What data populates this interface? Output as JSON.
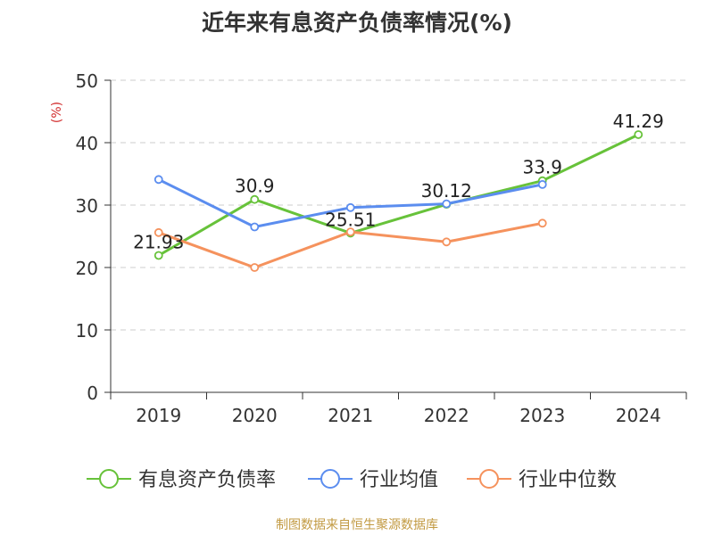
{
  "chart_data": {
    "type": "line",
    "title": "近年来有息资产负债率情况(%)",
    "ylabel": "(%)",
    "xlabel": "",
    "categories": [
      "2019",
      "2020",
      "2021",
      "2022",
      "2023",
      "2024"
    ],
    "ylim": [
      0,
      50
    ],
    "yticks": [
      0,
      10,
      20,
      30,
      40,
      50
    ],
    "grid": true,
    "legend_position": "bottom",
    "series": [
      {
        "name": "有息资产负债率",
        "color": "#67c23a",
        "values": [
          21.93,
          30.9,
          25.51,
          30.12,
          33.9,
          41.29
        ],
        "labels": [
          "21.93",
          "30.9",
          "25.51",
          "30.12",
          "33.9",
          "41.29"
        ]
      },
      {
        "name": "行业均值",
        "color": "#5b8def",
        "values": [
          34.1,
          26.5,
          29.6,
          30.2,
          33.3,
          null
        ]
      },
      {
        "name": "行业中位数",
        "color": "#f5925d",
        "values": [
          25.6,
          20.0,
          25.7,
          24.1,
          27.1,
          null
        ]
      }
    ],
    "source": "制图数据来自恒生聚源数据库"
  }
}
